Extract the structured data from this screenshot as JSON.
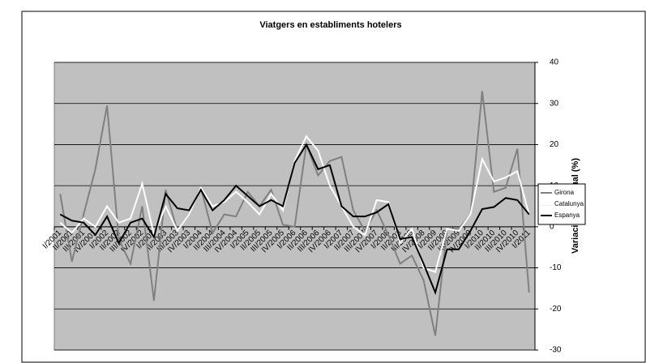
{
  "chart_data": {
    "type": "line",
    "title": "Viatgers en establiments hotelers",
    "y_label": "Variació interanual (%)",
    "categories": [
      "I/2001",
      "II/2001",
      "III/2001",
      "IV/2001",
      "I/2002",
      "II/2002",
      "III/2002",
      "IV/2002",
      "I/2003",
      "II/2003",
      "III/2003",
      "IV/2003",
      "I/2004",
      "II/2004",
      "III/2004",
      "IV/2004",
      "I/2005",
      "II/2005",
      "III/2005",
      "IV/2005",
      "I/2006",
      "II/2006",
      "III/2006",
      "IV/2006",
      "I/2007",
      "II/2007",
      "III/2007",
      "IV/2007",
      "I/2008",
      "II/2008",
      "III/2008",
      "IV/2008",
      "I/2009",
      "II/2009",
      "III/2009",
      "IV/2009",
      "I/2010",
      "II/2010",
      "III/2010",
      "IV/2010",
      "I/2011"
    ],
    "series": [
      {
        "name": "Girona",
        "color": "#808080",
        "values": [
          8,
          -8.5,
          3,
          14,
          29.5,
          -3,
          -9,
          5,
          -18,
          9,
          -1,
          3,
          9.5,
          -1.5,
          3,
          2.5,
          8.5,
          5,
          9,
          0.5,
          0,
          20,
          12.5,
          16,
          17,
          4,
          -1,
          4,
          -2,
          -9,
          -7,
          -13,
          -26.5,
          -0.5,
          -0.5,
          3,
          33,
          8.5,
          9.5,
          19,
          -16
        ]
      },
      {
        "name": "Catalunya",
        "color": "#ffffff",
        "values": [
          1,
          -1.5,
          2,
          0,
          5,
          1,
          2,
          10.5,
          -2,
          5,
          -1,
          3,
          9.5,
          5,
          6,
          8.5,
          6,
          3,
          8,
          4,
          16,
          22,
          18.5,
          10,
          5,
          0,
          -2,
          6.5,
          6,
          -4,
          -0.5,
          -10,
          -11,
          -0.5,
          -1,
          3,
          16.5,
          11,
          12,
          13.5,
          3
        ]
      },
      {
        "name": "Espanya",
        "color": "#000000",
        "values": [
          3,
          1.5,
          1,
          -2,
          2.5,
          -4,
          1,
          2,
          -2.5,
          8,
          4.5,
          4,
          9,
          4,
          6.5,
          10,
          7.5,
          5,
          6.5,
          5,
          15.5,
          20,
          14,
          15,
          5,
          2.5,
          2.5,
          3.5,
          5.5,
          -3,
          -2.5,
          -9,
          -16,
          -5.5,
          -5.5,
          -1,
          4.3,
          4.8,
          7,
          6.5,
          3
        ]
      }
    ],
    "ylim": [
      -30,
      40
    ],
    "yticks": [
      -30,
      -20,
      -10,
      0,
      10,
      20,
      30,
      40
    ],
    "grid": true,
    "plot_color": "#c0c0c0",
    "legend": "right"
  }
}
